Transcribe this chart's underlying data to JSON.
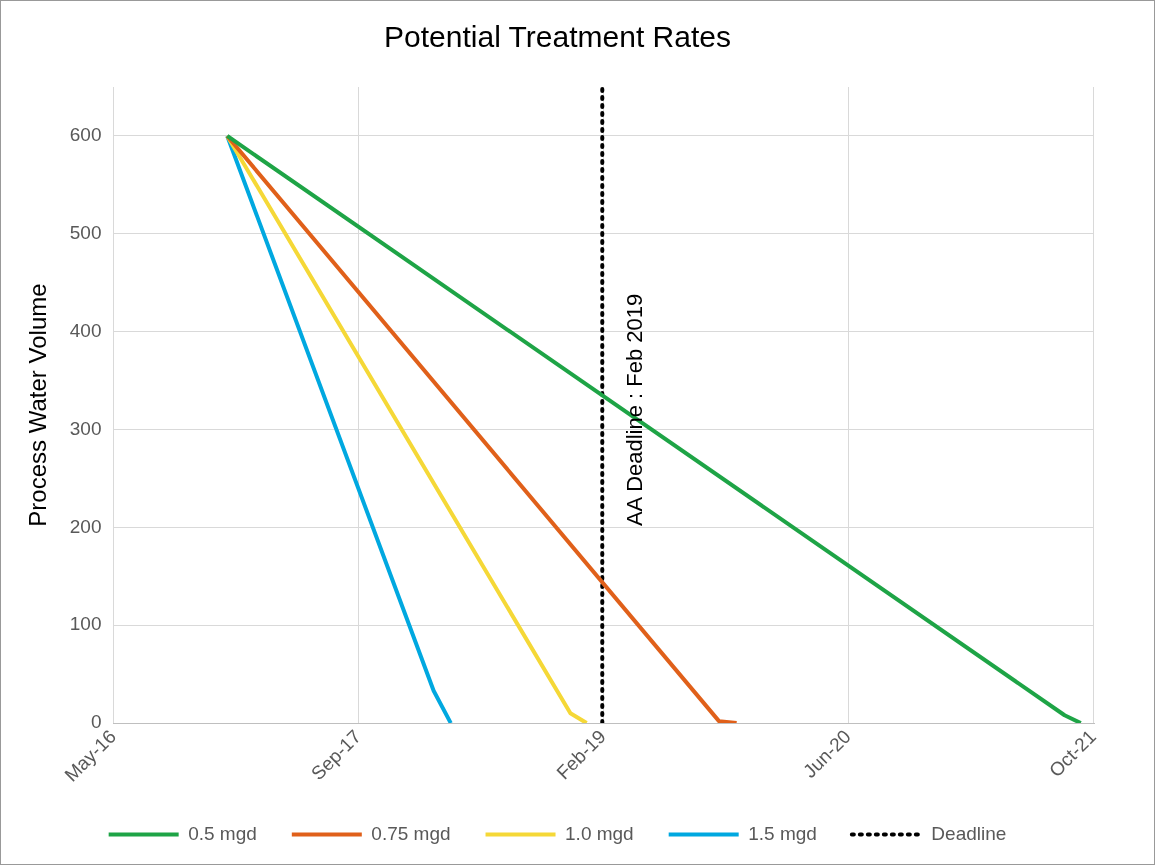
{
  "chart_data": {
    "type": "line",
    "title": "Potential Treatment Rates",
    "ylabel": "Process Water Volume",
    "xlim": [
      "2016-05-10",
      "2021-10-31"
    ],
    "xticks": [
      {
        "value": "2016-05-10",
        "label": "May-16"
      },
      {
        "value": "2017-09-22",
        "label": "Sep-17"
      },
      {
        "value": "2019-02-03",
        "label": "Feb-19"
      },
      {
        "value": "2020-06-17",
        "label": "Jun-20"
      },
      {
        "value": "2021-10-30",
        "label": "Oct-21"
      }
    ],
    "ylim": [
      0,
      650
    ],
    "yticks": [
      0,
      100,
      200,
      300,
      400,
      500,
      600
    ],
    "grid": true,
    "legend": "bottom",
    "marker": "none",
    "series": [
      {
        "name": "0.5 mgd",
        "color": "#1ea446",
        "x": [
          "2016-12-28",
          "2021-09-01",
          "2021-10-04"
        ],
        "values": [
          600,
          8,
          0
        ]
      },
      {
        "name": "0.75 mgd",
        "color": "#e0601a",
        "x": [
          "2016-12-28",
          "2019-09-27",
          "2019-11-02"
        ],
        "values": [
          600,
          2,
          0
        ]
      },
      {
        "name": "1.0 mgd",
        "color": "#f5d837",
        "x": [
          "2016-12-28",
          "2018-11-28",
          "2018-12-31"
        ],
        "values": [
          600,
          10,
          0
        ]
      },
      {
        "name": "1.5 mgd",
        "color": "#00a8e0",
        "x": [
          "2016-12-28",
          "2018-02-22",
          "2018-03-29"
        ],
        "values": [
          600,
          33,
          0
        ]
      },
      {
        "name": "Deadline",
        "color": "#000000",
        "line_style": "dotted",
        "x": [
          "2019-02-01",
          "2019-02-01"
        ],
        "values": [
          0,
          650
        ]
      }
    ],
    "annotations": [
      {
        "text": "AA Deadline : Feb 2019",
        "x": "2019-02-01",
        "y": 320
      }
    ]
  }
}
